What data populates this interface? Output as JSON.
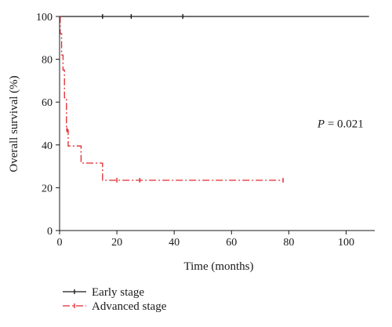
{
  "chart_data": {
    "type": "line",
    "xlabel": "Time (months)",
    "ylabel": "Overall survival (%)",
    "xlim": [
      0,
      110
    ],
    "ylim": [
      0,
      100
    ],
    "xticks": [
      0,
      20,
      40,
      60,
      80,
      100
    ],
    "yticks": [
      0,
      20,
      40,
      60,
      80,
      100
    ],
    "grid": false,
    "legend_position": "bottom-left",
    "annotation": {
      "prefix": "P",
      "text": " = 0.021",
      "x": 90,
      "y": 50
    },
    "series": [
      {
        "name": "Early stage",
        "color": "#1a1a1a",
        "style": "solid",
        "steps": [
          [
            0,
            100
          ],
          [
            108,
            100
          ]
        ],
        "censors": [
          [
            15,
            100
          ],
          [
            25,
            100
          ],
          [
            43,
            100
          ]
        ]
      },
      {
        "name": "Advanced stage",
        "color": "#e0282e",
        "style": "dashdot",
        "steps": [
          [
            0,
            100
          ],
          [
            0.2,
            92
          ],
          [
            0.7,
            82
          ],
          [
            1.2,
            75
          ],
          [
            1.7,
            62
          ],
          [
            2.4,
            47
          ],
          [
            3,
            39.5
          ],
          [
            7.5,
            31.5
          ],
          [
            15,
            23.5
          ],
          [
            78,
            23.5
          ]
        ],
        "censors": [
          [
            2.6,
            47
          ],
          [
            20,
            23.5
          ],
          [
            28,
            23.5
          ],
          [
            78,
            23.5
          ]
        ]
      }
    ]
  }
}
